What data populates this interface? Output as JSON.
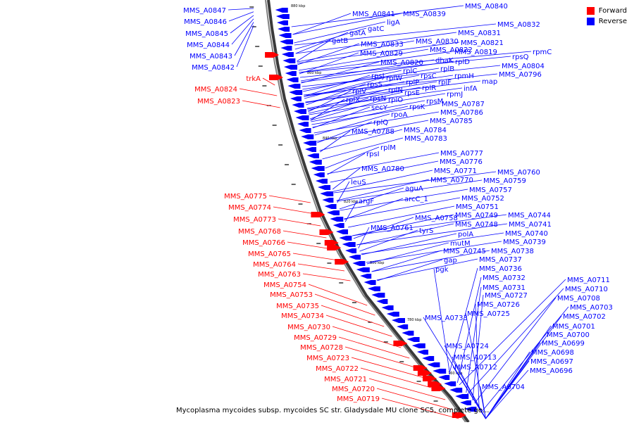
{
  "legend": {
    "forward": "Forward",
    "reverse": "Reverse"
  },
  "colors": {
    "forward": "#ff0000",
    "reverse": "#0000ff",
    "backbone": "#808080"
  },
  "caption": "Mycoplasma mycoides subsp. mycoides SC str. Gladysdale MU clone SC5, complete ge...",
  "position_labels": [
    "880 kbp",
    "860 kbp",
    "840 kbp",
    "820 kbp",
    "800 kbp",
    "780 kbp",
    "760 kbp"
  ],
  "forward_genes": [
    "trkA",
    "MMS_A0824",
    "MMS_A0823",
    "MMS_A0775",
    "MMS_A0774",
    "MMS_A0773",
    "MMS_A0768",
    "MMS_A0766",
    "MMS_A0765",
    "MMS_A0764",
    "MMS_A0763",
    "MMS_A0754",
    "MMS_A0753",
    "MMS_A0735",
    "MMS_A0734",
    "MMS_A0730",
    "MMS_A0729",
    "MMS_A0728",
    "MMS_A0723",
    "MMS_A0722",
    "MMS_A0721",
    "MMS_A0720",
    "MMS_A0719"
  ],
  "reverse_left_genes": [
    "MMS_A0847",
    "MMS_A0846",
    "MMS_A0845",
    "MMS_A0844",
    "MMS_A0843",
    "MMS_A0842"
  ],
  "reverse_genes": [
    "MMS_A0840",
    "MMS_A0841",
    "MMS_A0839",
    "ligA",
    "gatC",
    "MMS_A0832",
    "gatA",
    "MMS_A0831",
    "gatB",
    "MMS_A0830",
    "MMS_A0821",
    "MMS_A0833",
    "MMS_A0822",
    "MMS_A0829",
    "MMS_A0819",
    "rpmC",
    "dhaK",
    "rpsQ",
    "rplD",
    "MMS_A0820",
    "MMS_A0804",
    "rplB",
    "rplC",
    "rpsC",
    "rpmH",
    "MMS_A0796",
    "rpsJ",
    "rplW",
    "rpsS",
    "rplP",
    "rplF",
    "map",
    "infA",
    "rplV",
    "rplN",
    "rpsE",
    "rplR",
    "rplX",
    "rpsN",
    "rplO",
    "rpmJ",
    "rpsM",
    "secY",
    "rpsK",
    "MMS_A0787",
    "MMS_A0786",
    "rpoA",
    "rplQ",
    "MMS_A0785",
    "MMS_A0784",
    "MMS_A0788",
    "MMS_A0783",
    "rplM",
    "rpsI",
    "MMS_A0777",
    "MMS_A0776",
    "MMS_A0780",
    "MMS_A0771",
    "MMS_A0760",
    "leuS",
    "MMS_A0770",
    "MMS_A0759",
    "aguA",
    "MMS_A0757",
    "arcC_1",
    "argF",
    "MMS_A0752",
    "MMS_A0751",
    "MMS_A0758",
    "MMS_A0749",
    "MMS_A0744",
    "MMS_A0761",
    "MMS_A0748",
    "MMS_A0741",
    "tyrS",
    "polA",
    "MMS_A0740",
    "mutM",
    "MMS_A0739",
    "MMS_A0745",
    "MMS_A0738",
    "gap",
    "MMS_A0737",
    "pgk",
    "MMS_A0736",
    "MMS_A0732",
    "MMS_A0731",
    "MMS_A0727",
    "MMS_A0726",
    "MMS_A0733",
    "MMS_A0725",
    "MMS_A0711",
    "MMS_A0710",
    "MMS_A0708",
    "MMS_A0703",
    "MMS_A0702",
    "MMS_A0701",
    "MMS_A0700",
    "MMS_A0699",
    "MMS_A0698",
    "MMS_A0697",
    "MMS_A0696",
    "MMS_A0724",
    "MMS_A0713",
    "MMS_A0712",
    "MMS_A0704"
  ]
}
